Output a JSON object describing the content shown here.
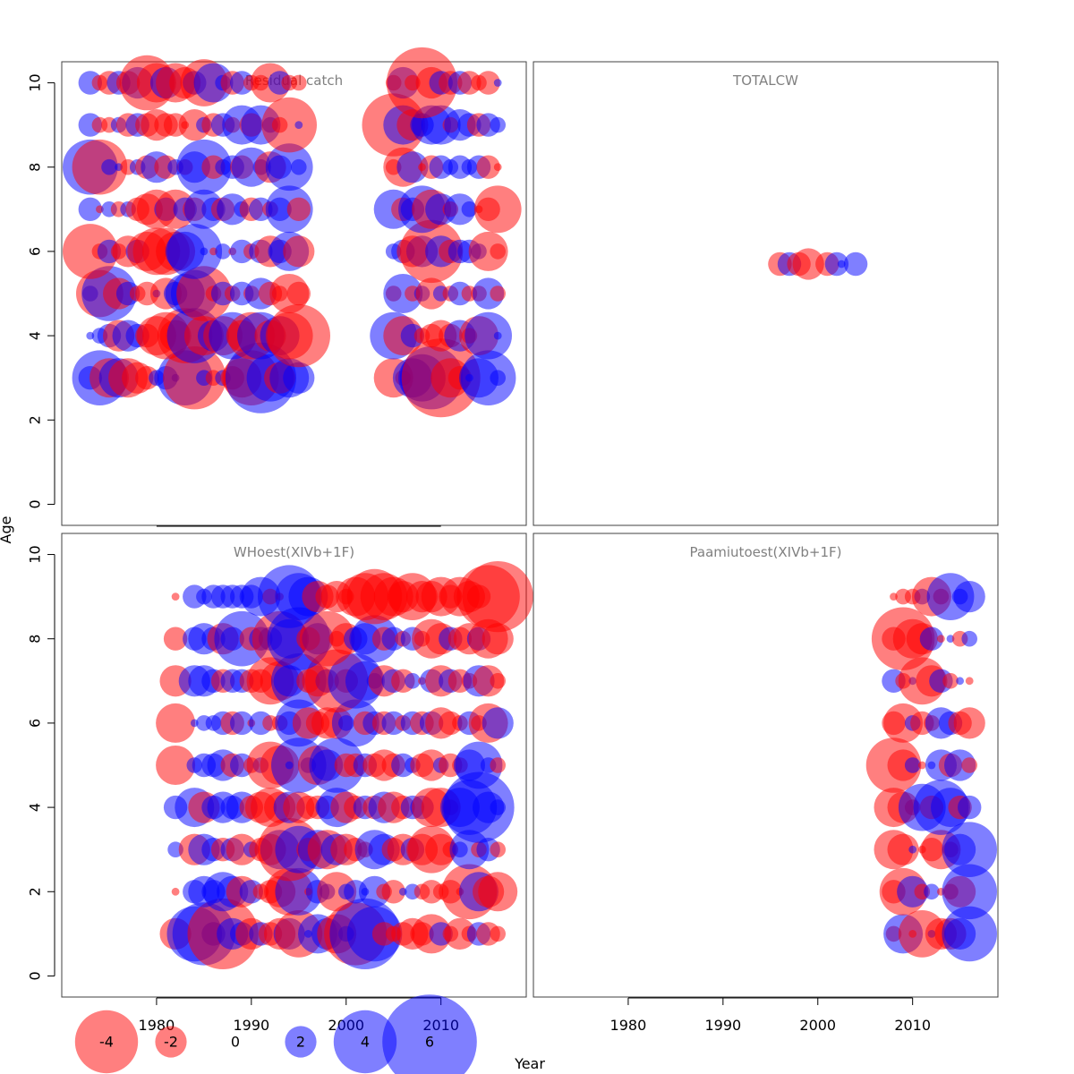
{
  "figure": {
    "xlabel": "Year",
    "ylabel": "Age",
    "colors": {
      "negative": "#ff0000",
      "positive": "#0000ff",
      "frame": "#404040",
      "title": "#808080"
    }
  },
  "legend": {
    "entries": [
      {
        "label": "-4",
        "value": -4
      },
      {
        "label": "-2",
        "value": -2
      },
      {
        "label": "0",
        "value": 0
      },
      {
        "label": "2",
        "value": 2
      },
      {
        "label": "4",
        "value": 4
      },
      {
        "label": "6",
        "value": 6
      }
    ]
  },
  "chart_data": [
    {
      "type": "scatter",
      "title": "Residual catch",
      "xlim": [
        1970,
        2019
      ],
      "ylim": [
        -0.5,
        10.5
      ],
      "xticks": [
        1980,
        1990,
        2000,
        2010
      ],
      "yticks": [
        0,
        2,
        4,
        6,
        8,
        10
      ],
      "show_xticks": false,
      "show_yticks": true,
      "ages": [
        3,
        4,
        5,
        6,
        7,
        8,
        9,
        10
      ],
      "years": [
        1973,
        1974,
        1975,
        1976,
        1977,
        1978,
        1979,
        1980,
        1981,
        1982,
        1983,
        1984,
        1985,
        1986,
        1987,
        1988,
        1989,
        1990,
        1991,
        1992,
        1993,
        1994,
        1995,
        2005,
        2006,
        2007,
        2008,
        2009,
        2010,
        2011,
        2012,
        2013,
        2014,
        2015,
        2016
      ],
      "residuals": {
        "3": [
          1.5,
          3.5,
          -2.5,
          2.5,
          -2.5,
          -2.0,
          -1.5,
          1.0,
          1.5,
          0.5,
          3.5,
          -4.0,
          1.0,
          -1.0,
          1.0,
          -1.5,
          -2.5,
          -3.5,
          4.5,
          3.0,
          -2.0,
          2.5,
          2.0,
          -2.5,
          -1.0,
          2.5,
          3.0,
          4.0,
          -5.0,
          -2.5,
          -1.5,
          0.5,
          2.5,
          3.5,
          1.0
        ],
        "4": [
          0.5,
          1.0,
          1.5,
          -2.0,
          2.0,
          1.5,
          -1.5,
          -2.5,
          -3.0,
          -2.0,
          -3.5,
          3.5,
          -2.5,
          2.0,
          -2.5,
          3.0,
          -2.0,
          -3.0,
          3.0,
          -2.0,
          2.5,
          -3.0,
          -4.0,
          3.0,
          -2.5,
          1.5,
          -1.0,
          -1.5,
          -2.0,
          -1.5,
          2.0,
          -1.0,
          -2.5,
          3.0,
          0.5
        ],
        "5": [
          1.0,
          -3.0,
          3.5,
          -2.0,
          1.5,
          -1.0,
          -1.5,
          0.5,
          -2.0,
          1.5,
          2.5,
          3.0,
          -3.5,
          -1.0,
          1.5,
          -1.0,
          1.5,
          -1.0,
          2.0,
          -1.5,
          -1.0,
          -2.5,
          -1.5,
          -1.0,
          2.5,
          -1.0,
          1.0,
          -2.0,
          1.0,
          -1.0,
          1.5,
          -1.0,
          -1.0,
          2.0,
          -1.0
        ],
        "6": [
          -3.5,
          -1.0,
          1.5,
          -1.0,
          -2.0,
          1.5,
          -2.5,
          -3.0,
          -3.0,
          -2.5,
          2.5,
          3.5,
          0.5,
          -0.5,
          1.0,
          -0.5,
          1.5,
          -1.0,
          1.5,
          -2.0,
          1.5,
          2.5,
          -2.0,
          1.0,
          1.5,
          -2.0,
          2.0,
          -4.0,
          2.0,
          -1.5,
          1.5,
          1.5,
          1.0,
          -2.5,
          -1.0
        ],
        "7": [
          1.5,
          -0.5,
          1.0,
          -1.0,
          1.0,
          -1.5,
          -2.0,
          -2.5,
          1.5,
          -2.5,
          1.5,
          -1.5,
          2.5,
          1.5,
          -1.5,
          2.0,
          1.0,
          -1.5,
          1.5,
          -1.0,
          1.5,
          3.0,
          -1.5,
          2.5,
          -1.5,
          1.5,
          3.0,
          -2.5,
          2.0,
          -1.0,
          2.0,
          1.0,
          -0.5,
          -1.5,
          -3.0
        ],
        "8": [
          3.5,
          -3.5,
          1.0,
          0.5,
          -1.0,
          1.0,
          -1.5,
          2.0,
          -1.5,
          1.0,
          -1.0,
          2.0,
          3.5,
          -1.5,
          1.0,
          1.5,
          -1.5,
          2.5,
          1.0,
          -2.0,
          1.5,
          3.0,
          1.0,
          -1.0,
          -2.5,
          2.0,
          -0.5,
          -1.5,
          1.5,
          1.0,
          1.5,
          1.0,
          1.5,
          -1.5,
          -0.5
        ],
        "9": [
          1.5,
          -1.0,
          -1.0,
          1.0,
          -1.5,
          1.5,
          -1.5,
          -2.0,
          -1.5,
          -1.5,
          -0.5,
          -2.0,
          1.0,
          -1.5,
          1.5,
          -1.0,
          2.5,
          -1.5,
          2.5,
          1.0,
          -1.0,
          -3.5,
          0.5,
          -4.0,
          2.5,
          -2.0,
          1.5,
          2.5,
          2.5,
          -1.0,
          2.0,
          1.5,
          -1.5,
          1.5,
          1.0
        ],
        "10": [
          1.5,
          -1.0,
          -1.5,
          1.5,
          -1.5,
          2.0,
          -3.5,
          -2.5,
          2.0,
          -2.5,
          -2.0,
          1.5,
          -3.0,
          2.5,
          1.0,
          -1.5,
          1.5,
          -1.0,
          -1.0,
          -2.5,
          1.5,
          -1.0,
          -1.0,
          -1.0,
          2.0,
          -1.0,
          -4.5,
          -2.0,
          1.5,
          -1.5,
          1.5,
          -1.5,
          -1.0,
          -1.5,
          0.5
        ]
      }
    },
    {
      "type": "scatter",
      "title": "TOTALCW",
      "xlim": [
        1970,
        2019
      ],
      "ylim": [
        -0.5,
        10.5
      ],
      "show_xticks": false,
      "show_yticks": false,
      "points": [
        {
          "x": 1996,
          "y": 5.7,
          "value": -1.5
        },
        {
          "x": 1997,
          "y": 5.7,
          "value": 1.5
        },
        {
          "x": 1998,
          "y": 5.7,
          "value": -1.5
        },
        {
          "x": 1999,
          "y": 5.7,
          "value": -2.0
        },
        {
          "x": 2001,
          "y": 5.7,
          "value": -1.5
        },
        {
          "x": 2002,
          "y": 5.7,
          "value": 1.5
        },
        {
          "x": 2002.5,
          "y": 5.7,
          "value": 0.5
        },
        {
          "x": 2004,
          "y": 5.7,
          "value": 1.5
        }
      ]
    },
    {
      "type": "scatter",
      "title": "WHoest(XIVb+1F)",
      "xlim": [
        1970,
        2019
      ],
      "ylim": [
        -0.5,
        10.5
      ],
      "xticks": [
        1980,
        1990,
        2000,
        2010
      ],
      "yticks": [
        0,
        2,
        4,
        6,
        8,
        10
      ],
      "show_xticks": true,
      "show_yticks": true,
      "ages": [
        1,
        2,
        3,
        4,
        5,
        6,
        7,
        8,
        9
      ],
      "years": [
        1982,
        1984,
        1985,
        1986,
        1987,
        1988,
        1989,
        1990,
        1991,
        1992,
        1993,
        1994,
        1995,
        1996,
        1997,
        1998,
        1999,
        2000,
        2001,
        2002,
        2003,
        2004,
        2005,
        2006,
        2007,
        2008,
        2009,
        2010,
        2011,
        2012,
        2013,
        2014,
        2015,
        2016
      ],
      "residuals": {
        "1": [
          -2.0,
          3.5,
          4.0,
          1.5,
          -4.5,
          2.0,
          1.5,
          -2.0,
          1.5,
          -1.5,
          -2.0,
          2.0,
          -3.0,
          0.5,
          2.5,
          2.0,
          -2.5,
          1.0,
          -4.0,
          4.5,
          3.5,
          -1.5,
          -1.0,
          -1.5,
          -2.0,
          -1.5,
          -2.5,
          1.5,
          -1.0,
          -2.0,
          -1.0,
          1.5,
          -1.5,
          -1.0
        ],
        "2": [
          -0.5,
          1.5,
          2.0,
          1.5,
          2.5,
          2.0,
          -2.0,
          1.5,
          -1.0,
          -1.5,
          -2.0,
          -3.0,
          3.0,
          -0.5,
          1.5,
          1.0,
          -2.5,
          1.0,
          1.5,
          0.5,
          2.0,
          -1.0,
          -1.5,
          0.5,
          1.0,
          -1.0,
          -1.5,
          -1.0,
          -1.5,
          -0.5,
          -3.5,
          2.5,
          -2.0,
          -2.5
        ],
        "3": [
          1.0,
          -2.0,
          2.0,
          1.5,
          -1.5,
          1.5,
          -2.0,
          1.0,
          -1.5,
          -2.0,
          2.5,
          -4.0,
          3.0,
          -1.5,
          2.5,
          -2.5,
          2.0,
          -2.0,
          -1.5,
          -1.0,
          2.5,
          2.0,
          -1.5,
          -2.0,
          1.5,
          -2.0,
          -3.0,
          -2.0,
          -1.0,
          1.0,
          2.5,
          -1.0,
          1.5,
          -1.0
        ],
        "4": [
          1.5,
          2.5,
          -2.0,
          1.5,
          2.0,
          1.5,
          2.0,
          -1.5,
          -2.0,
          -2.5,
          -2.0,
          2.0,
          -2.0,
          -1.5,
          -1.5,
          1.5,
          2.5,
          -2.0,
          -1.5,
          1.5,
          -1.5,
          2.0,
          -2.0,
          -1.5,
          1.5,
          1.5,
          -2.5,
          -2.5,
          -1.0,
          2.5,
          3.5,
          4.5,
          2.0,
          1.0
        ],
        "5": [
          -2.5,
          1.0,
          1.5,
          1.5,
          2.0,
          -1.5,
          1.5,
          -1.0,
          1.0,
          -3.0,
          -2.5,
          0.5,
          3.5,
          1.0,
          -2.5,
          2.0,
          3.5,
          -1.5,
          -1.5,
          1.5,
          -1.5,
          -2.0,
          -1.5,
          1.5,
          1.0,
          -1.5,
          -2.0,
          1.0,
          -1.5,
          -1.0,
          2.0,
          3.0,
          1.0,
          -1.0
        ],
        "6": [
          -2.5,
          0.5,
          1.0,
          1.0,
          1.5,
          -1.5,
          1.5,
          -0.5,
          1.5,
          -1.0,
          -1.0,
          1.5,
          3.0,
          -2.0,
          -1.5,
          -2.0,
          -2.0,
          1.0,
          3.0,
          -1.5,
          1.5,
          -1.5,
          1.5,
          -1.0,
          1.5,
          -1.5,
          1.5,
          -2.0,
          -1.5,
          -1.0,
          1.5,
          -1.0,
          -2.5,
          2.0
        ],
        "7": [
          -2.0,
          2.0,
          2.0,
          1.5,
          -1.5,
          1.5,
          1.5,
          -1.5,
          -1.5,
          -3.0,
          -2.5,
          2.0,
          3.5,
          -1.5,
          -2.0,
          1.5,
          -4.0,
          -1.5,
          3.5,
          2.5,
          1.0,
          -2.0,
          1.5,
          -1.5,
          1.0,
          -0.5,
          1.5,
          -2.0,
          1.5,
          -1.5,
          -1.0,
          2.0,
          -2.0,
          -1.0
        ],
        "8": [
          -1.5,
          1.5,
          2.0,
          1.5,
          -2.0,
          1.5,
          3.5,
          -1.5,
          1.5,
          1.5,
          -3.5,
          2.5,
          4.0,
          -1.5,
          2.0,
          -3.5,
          -1.0,
          -2.0,
          1.5,
          2.0,
          3.0,
          -1.5,
          1.5,
          -1.0,
          1.5,
          -1.0,
          -2.5,
          -2.0,
          1.5,
          -1.5,
          -2.0,
          1.5,
          -2.5,
          -2.0
        ],
        "9": [
          -0.5,
          1.5,
          1.0,
          1.5,
          1.5,
          1.5,
          1.5,
          1.5,
          2.5,
          -1.0,
          -0.5,
          4.0,
          3.0,
          2.5,
          -2.0,
          -1.5,
          -2.0,
          -1.0,
          -2.5,
          -3.0,
          -3.5,
          -3.0,
          -2.5,
          -2.0,
          -3.0,
          -2.0,
          -2.0,
          -2.5,
          -1.5,
          -2.5,
          -2.0,
          -1.5,
          -4.0,
          -4.5
        ]
      }
    },
    {
      "type": "scatter",
      "title": "Paamiutoest(XIVb+1F)",
      "xlim": [
        1970,
        2019
      ],
      "ylim": [
        -0.5,
        10.5
      ],
      "xticks": [
        1980,
        1990,
        2000,
        2010
      ],
      "show_xticks": true,
      "show_yticks": false,
      "ages": [
        1,
        2,
        3,
        4,
        5,
        6,
        7,
        8,
        9
      ],
      "years": [
        2008,
        2009,
        2010,
        2011,
        2012,
        2013,
        2014,
        2015,
        2016
      ],
      "residuals": {
        "1": [
          -1.0,
          2.5,
          -0.5,
          -3.0,
          0.5,
          -2.0,
          -2.0,
          2.0,
          3.5
        ],
        "2": [
          -1.5,
          -3.0,
          2.0,
          -1.0,
          1.0,
          -0.5,
          -1.0,
          -2.0,
          3.5
        ],
        "3": [
          -2.5,
          -2.0,
          0.5,
          -0.5,
          -1.5,
          -2.5,
          -1.0,
          2.0,
          3.5
        ],
        "4": [
          -2.5,
          -2.0,
          -1.0,
          3.0,
          -1.5,
          3.5,
          2.5,
          -1.5,
          1.5
        ],
        "5": [
          -3.5,
          -2.0,
          1.0,
          -0.5,
          0.5,
          2.0,
          -1.5,
          2.0,
          -1.0
        ],
        "6": [
          -1.5,
          -2.5,
          1.0,
          -1.5,
          -1.0,
          2.0,
          1.5,
          -1.5,
          -2.0
        ],
        "7": [
          1.5,
          -1.0,
          0.5,
          -3.0,
          -2.0,
          1.5,
          -1.0,
          0.5,
          -0.5
        ],
        "8": [
          -1.5,
          -4.0,
          -2.5,
          -2.0,
          1.5,
          -0.5,
          0.5,
          -1.0,
          1.0
        ],
        "9": [
          -0.5,
          -1.0,
          -1.0,
          1.0,
          -2.5,
          -1.0,
          3.0,
          1.0,
          2.0
        ]
      }
    }
  ]
}
